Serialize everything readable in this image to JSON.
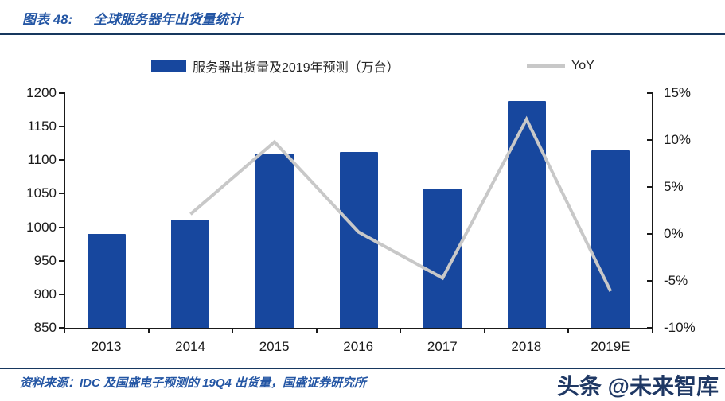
{
  "header": {
    "figure_label": "图表 48:",
    "title": "全球服务器年出货量统计"
  },
  "legend": {
    "bar_label": "服务器出货量及2019年预测（万台）",
    "line_label": "YoY"
  },
  "footer": {
    "source": "资料来源：IDC 及国盛电子预测的 19Q4 出货量，国盛证券研究所",
    "watermark": "头条 @未来智库"
  },
  "colors": {
    "bar": "#17479E",
    "line": "#C8C8C8",
    "accent_blue": "#2456A4",
    "divider_navy": "#17375E",
    "axis": "#1a1a1a"
  },
  "chart_data": {
    "type": "bar",
    "subtype": "bar+line dual axis",
    "title": "全球服务器年出货量统计",
    "categories": [
      "2013",
      "2014",
      "2015",
      "2016",
      "2017",
      "2018",
      "2019E"
    ],
    "series": [
      {
        "name": "服务器出货量及2019年预测（万台）",
        "type": "bar",
        "axis": "left",
        "color": "#17479E",
        "values": [
          990,
          1011,
          1110,
          1112,
          1058,
          1188,
          1115
        ]
      },
      {
        "name": "YoY",
        "type": "line",
        "axis": "right",
        "color": "#C8C8C8",
        "unit": "%",
        "values": [
          null,
          2.1,
          9.8,
          0.2,
          -4.7,
          12.2,
          -6.1
        ]
      }
    ],
    "left_axis": {
      "min": 850,
      "max": 1200,
      "tick_step": 50,
      "tick_labels": [
        "1200",
        "1150",
        "1100",
        "1050",
        "1000",
        "950",
        "900",
        "850"
      ]
    },
    "right_axis": {
      "min": -10,
      "max": 15,
      "tick_step": 5,
      "tick_labels": [
        "15%",
        "10%",
        "5%",
        "0%",
        "-5%",
        "-10%"
      ]
    },
    "grid": false,
    "legend_position": "top"
  }
}
